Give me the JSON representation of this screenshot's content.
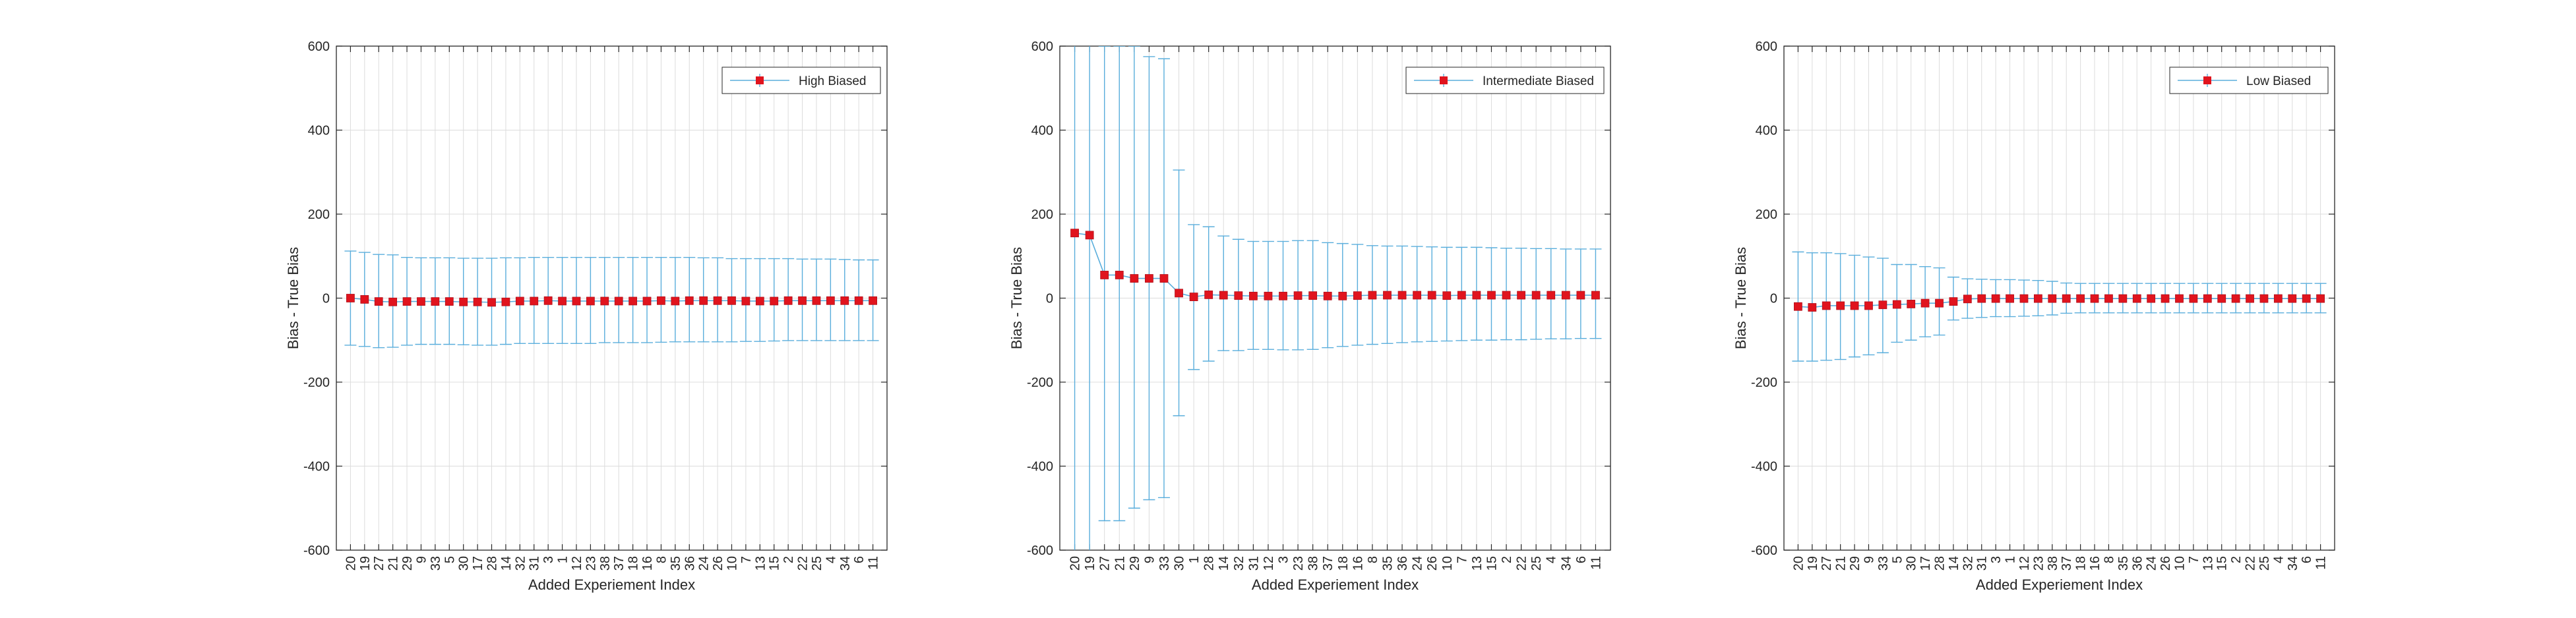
{
  "colors": {
    "series_line": "#5aaedc",
    "errorbar": "#5aaedc",
    "marker": "#e0141e",
    "axis": "#262626",
    "grid": "#dcdcdc"
  },
  "chart_data": [
    {
      "type": "errorbar",
      "xlabel": "Added Experiement Index",
      "ylabel": "Bias - True Bias",
      "ylim": [
        -600,
        600
      ],
      "yticks": [
        "-600",
        "-400",
        "-200",
        "0",
        "200",
        "400",
        "600"
      ],
      "grid": true,
      "legend_position": "top-right",
      "categories": [
        "20",
        "19",
        "27",
        "21",
        "29",
        "9",
        "33",
        "5",
        "30",
        "17",
        "28",
        "14",
        "32",
        "31",
        "3",
        "1",
        "12",
        "23",
        "38",
        "37",
        "18",
        "16",
        "8",
        "35",
        "36",
        "24",
        "26",
        "10",
        "7",
        "13",
        "15",
        "2",
        "22",
        "25",
        "4",
        "34",
        "6",
        "11"
      ],
      "series": [
        {
          "name": "High Biased",
          "values": [
            0,
            -3,
            -8,
            -9,
            -8,
            -8,
            -8,
            -8,
            -9,
            -9,
            -10,
            -9,
            -7,
            -7,
            -6,
            -7,
            -7,
            -7,
            -7,
            -7,
            -7,
            -7,
            -6,
            -7,
            -6,
            -6,
            -6,
            -6,
            -7,
            -7,
            -7,
            -6,
            -6,
            -6,
            -6,
            -6,
            -6,
            -6
          ],
          "lower": [
            -112,
            -115,
            -118,
            -117,
            -112,
            -110,
            -110,
            -110,
            -111,
            -112,
            -112,
            -110,
            -108,
            -108,
            -108,
            -108,
            -108,
            -108,
            -106,
            -106,
            -106,
            -106,
            -105,
            -104,
            -104,
            -104,
            -104,
            -104,
            -103,
            -103,
            -102,
            -101,
            -101,
            -101,
            -101,
            -101,
            -101,
            -101
          ],
          "upper": [
            112,
            109,
            104,
            103,
            97,
            96,
            96,
            96,
            95,
            95,
            95,
            96,
            96,
            97,
            97,
            97,
            97,
            97,
            97,
            97,
            97,
            97,
            97,
            97,
            97,
            96,
            96,
            94,
            94,
            94,
            94,
            94,
            93,
            93,
            93,
            92,
            91,
            91
          ]
        }
      ]
    },
    {
      "type": "errorbar",
      "xlabel": "Added Experiement Index",
      "ylabel": "Bias - True Bias",
      "ylim": [
        -600,
        600
      ],
      "yticks": [
        "-600",
        "-400",
        "-200",
        "0",
        "200",
        "400",
        "600"
      ],
      "grid": true,
      "legend_position": "top-right",
      "categories": [
        "20",
        "19",
        "27",
        "21",
        "29",
        "9",
        "33",
        "30",
        "1",
        "28",
        "14",
        "32",
        "31",
        "12",
        "3",
        "23",
        "38",
        "37",
        "18",
        "16",
        "8",
        "35",
        "36",
        "24",
        "26",
        "10",
        "7",
        "13",
        "15",
        "2",
        "22",
        "25",
        "4",
        "34",
        "6",
        "11"
      ],
      "series": [
        {
          "name": "Intermediate Biased",
          "values": [
            155,
            150,
            55,
            55,
            47,
            47,
            47,
            12,
            3,
            8,
            7,
            6,
            5,
            5,
            5,
            6,
            6,
            5,
            5,
            6,
            7,
            7,
            7,
            7,
            7,
            6,
            7,
            7,
            7,
            7,
            7,
            7,
            7,
            7,
            7,
            7
          ],
          "lower": [
            -650,
            -650,
            -530,
            -530,
            -500,
            -480,
            -475,
            -280,
            -170,
            -150,
            -125,
            -125,
            -122,
            -122,
            -123,
            -123,
            -122,
            -118,
            -115,
            -112,
            -110,
            -108,
            -106,
            -104,
            -103,
            -102,
            -101,
            -100,
            -100,
            -99,
            -99,
            -98,
            -97,
            -97,
            -96,
            -96
          ],
          "upper": [
            650,
            650,
            600,
            600,
            600,
            575,
            570,
            305,
            175,
            170,
            148,
            140,
            135,
            135,
            135,
            137,
            137,
            132,
            130,
            128,
            125,
            124,
            124,
            123,
            122,
            121,
            121,
            121,
            120,
            119,
            119,
            118,
            118,
            117,
            117,
            117
          ]
        }
      ]
    },
    {
      "type": "errorbar",
      "xlabel": "Added Experiement Index",
      "ylabel": "Bias - True Bias",
      "ylim": [
        -600,
        600
      ],
      "yticks": [
        "-600",
        "-400",
        "-200",
        "0",
        "200",
        "400",
        "600"
      ],
      "grid": true,
      "legend_position": "top-right",
      "categories": [
        "20",
        "19",
        "27",
        "21",
        "29",
        "9",
        "33",
        "5",
        "30",
        "17",
        "28",
        "14",
        "32",
        "31",
        "3",
        "1",
        "12",
        "23",
        "38",
        "37",
        "18",
        "16",
        "8",
        "35",
        "36",
        "24",
        "26",
        "10",
        "7",
        "13",
        "15",
        "2",
        "22",
        "25",
        "4",
        "34",
        "6",
        "11"
      ],
      "series": [
        {
          "name": "Low Biased",
          "values": [
            -20,
            -22,
            -18,
            -18,
            -18,
            -18,
            -16,
            -15,
            -14,
            -12,
            -12,
            -8,
            -2,
            -1,
            -1,
            -1,
            -1,
            -1,
            -1,
            -1,
            -1,
            -1,
            -1,
            -1,
            -1,
            -1,
            -1,
            -1,
            -1,
            -1,
            -1,
            -1,
            -1,
            -1,
            -1,
            -1,
            -1,
            -1
          ],
          "lower": [
            -150,
            -150,
            -148,
            -146,
            -140,
            -135,
            -130,
            -105,
            -100,
            -92,
            -88,
            -52,
            -48,
            -46,
            -44,
            -44,
            -43,
            -42,
            -40,
            -36,
            -35,
            -35,
            -35,
            -35,
            -35,
            -35,
            -35,
            -35,
            -35,
            -35,
            -35,
            -35,
            -35,
            -35,
            -35,
            -35,
            -35,
            -35
          ],
          "upper": [
            110,
            108,
            108,
            106,
            102,
            98,
            95,
            80,
            80,
            75,
            72,
            50,
            46,
            45,
            44,
            44,
            43,
            42,
            40,
            36,
            35,
            35,
            35,
            35,
            35,
            35,
            35,
            35,
            35,
            35,
            35,
            35,
            35,
            35,
            35,
            35,
            35,
            35
          ]
        }
      ]
    }
  ]
}
